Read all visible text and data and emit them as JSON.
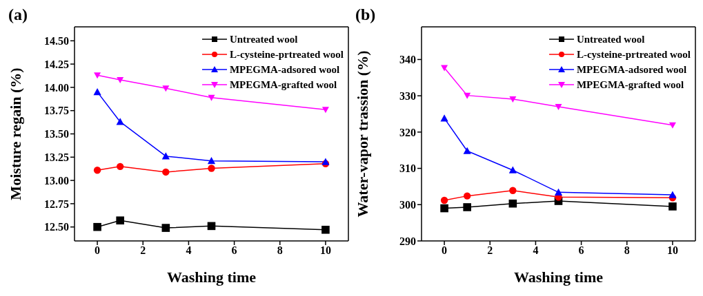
{
  "chart_data": [
    {
      "type": "line",
      "title": "(a)",
      "xlabel": "Washing time",
      "ylabel": "Moisture regain (%)",
      "x": [
        0,
        1,
        3,
        5,
        10
      ],
      "xlim": [
        -1,
        11
      ],
      "xticks": [
        0,
        2,
        4,
        6,
        8,
        10
      ],
      "ylim": [
        12.35,
        14.65
      ],
      "yticks": [
        {
          "value": 12.5,
          "label": "12.50"
        },
        {
          "value": 12.75,
          "label": "12.75"
        },
        {
          "value": 13.0,
          "label": "13.00"
        },
        {
          "value": 13.25,
          "label": "13.25"
        },
        {
          "value": 13.5,
          "label": "13.50"
        },
        {
          "value": 13.75,
          "label": "13.75"
        },
        {
          "value": 14.0,
          "label": "14.00"
        },
        {
          "value": 14.25,
          "label": "14.25"
        },
        {
          "value": 14.5,
          "label": "14.50"
        }
      ],
      "grid": false,
      "legend": "top right",
      "line_style": "solid",
      "series": [
        {
          "name": "Untreated wool",
          "color": "#000000",
          "marker": "square",
          "values": [
            12.5,
            12.57,
            12.49,
            12.51,
            12.47
          ]
        },
        {
          "name": "L-cysteine-prtreated wool",
          "color": "#ff0000",
          "marker": "circle",
          "values": [
            13.11,
            13.15,
            13.09,
            13.13,
            13.18
          ]
        },
        {
          "name": "MPEGMA-adsored wool",
          "color": "#0000ff",
          "marker": "triangle",
          "values": [
            13.95,
            13.63,
            13.26,
            13.21,
            13.2
          ]
        },
        {
          "name": "MPEGMA-grafted wool",
          "color": "#ff00ff",
          "marker": "triangle-down",
          "values": [
            14.13,
            14.08,
            13.99,
            13.89,
            13.76
          ]
        }
      ]
    },
    {
      "type": "line",
      "title": "(b)",
      "xlabel": "Washing time",
      "ylabel": "Water-vapor trassion (%)",
      "x": [
        0,
        1,
        3,
        5,
        10
      ],
      "xlim": [
        -1,
        11
      ],
      "xticks": [
        0,
        2,
        4,
        6,
        8,
        10
      ],
      "ylim": [
        290,
        349
      ],
      "yticks": [
        290,
        300,
        310,
        320,
        330,
        340
      ],
      "grid": false,
      "legend": "top right",
      "line_style": "solid",
      "series": [
        {
          "name": "Untreated wool",
          "color": "#000000",
          "marker": "square",
          "values": [
            299.0,
            299.3,
            300.3,
            301.0,
            299.5
          ]
        },
        {
          "name": "L-cysteine-prtreated wool",
          "color": "#ff0000",
          "marker": "circle",
          "values": [
            301.2,
            302.4,
            303.9,
            302.1,
            301.9
          ]
        },
        {
          "name": "MPEGMA-adsored wool",
          "color": "#0000ff",
          "marker": "triangle",
          "values": [
            323.8,
            314.8,
            309.5,
            303.4,
            302.7
          ]
        },
        {
          "name": "MPEGMA-grafted wool",
          "color": "#ff00ff",
          "marker": "triangle-down",
          "values": [
            337.7,
            330.1,
            329.1,
            327.0,
            321.9
          ]
        }
      ]
    }
  ]
}
